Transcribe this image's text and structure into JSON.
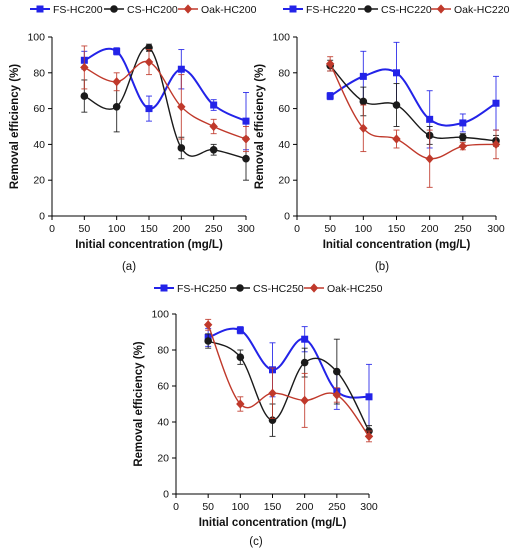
{
  "chart_data": [
    {
      "type": "line",
      "panel_label": "(a)",
      "xlabel": "Initial concentration (mg/L)",
      "ylabel": "Removal efficiency (%)",
      "xlim": [
        0,
        300
      ],
      "ylim": [
        0,
        100
      ],
      "xticks": [
        "0",
        "50",
        "100",
        "150",
        "200",
        "250",
        "300"
      ],
      "yticks": [
        "0",
        "20",
        "40",
        "60",
        "80",
        "100"
      ],
      "grid": false,
      "legend_position": "top",
      "x": [
        50,
        100,
        150,
        200,
        250,
        300
      ],
      "series": [
        {
          "name": "FS-HC200",
          "color": "#2323e8",
          "marker": "square",
          "values": [
            87,
            92,
            60,
            82,
            62,
            53
          ],
          "errors": [
            5,
            2,
            7,
            11,
            3,
            16
          ]
        },
        {
          "name": "CS-HC200",
          "color": "#1a1a1a",
          "marker": "circle",
          "values": [
            67,
            61,
            94,
            38,
            37,
            32
          ],
          "errors": [
            9,
            14,
            2,
            6,
            3,
            12
          ]
        },
        {
          "name": "Oak-HC200",
          "color": "#c0392b",
          "marker": "diamond",
          "values": [
            83,
            75,
            86,
            61,
            50,
            43
          ],
          "errors": [
            12,
            5,
            7,
            18,
            4,
            7
          ]
        }
      ]
    },
    {
      "type": "line",
      "panel_label": "(b)",
      "xlabel": "Initial concentration (mg/L)",
      "ylabel": "Removal efficiency (%)",
      "xlim": [
        0,
        300
      ],
      "ylim": [
        0,
        100
      ],
      "xticks": [
        "0",
        "50",
        "100",
        "150",
        "200",
        "250",
        "300"
      ],
      "yticks": [
        "0",
        "20",
        "40",
        "60",
        "80",
        "100"
      ],
      "grid": false,
      "legend_position": "top",
      "x": [
        50,
        100,
        150,
        200,
        250,
        300
      ],
      "series": [
        {
          "name": "FS-HC220",
          "color": "#2323e8",
          "marker": "square",
          "values": [
            67,
            78,
            80,
            54,
            52,
            63
          ],
          "errors": [
            2,
            14,
            17,
            16,
            5,
            15
          ]
        },
        {
          "name": "CS-HC220",
          "color": "#1a1a1a",
          "marker": "circle",
          "values": [
            84,
            64,
            62,
            45,
            44,
            42
          ],
          "errors": [
            3,
            8,
            12,
            5,
            2,
            3
          ]
        },
        {
          "name": "Oak-HC220",
          "color": "#c0392b",
          "marker": "diamond",
          "values": [
            85,
            49,
            43,
            32,
            39,
            40
          ],
          "errors": [
            4,
            13,
            5,
            16,
            2,
            8
          ]
        }
      ]
    },
    {
      "type": "line",
      "panel_label": "(c)",
      "xlabel": "Initial concentration (mg/L)",
      "ylabel": "Removal efficiency (%)",
      "xlim": [
        0,
        300
      ],
      "ylim": [
        0,
        100
      ],
      "xticks": [
        "0",
        "50",
        "100",
        "150",
        "200",
        "250",
        "300"
      ],
      "yticks": [
        "0",
        "20",
        "40",
        "60",
        "80",
        "100"
      ],
      "grid": false,
      "legend_position": "top",
      "x": [
        50,
        100,
        150,
        200,
        250,
        300
      ],
      "series": [
        {
          "name": "FS-HC250",
          "color": "#2323e8",
          "marker": "square",
          "values": [
            87,
            91,
            69,
            86,
            57,
            54
          ],
          "errors": [
            5,
            2,
            15,
            7,
            10,
            18
          ]
        },
        {
          "name": "CS-HC250",
          "color": "#1a1a1a",
          "marker": "circle",
          "values": [
            85,
            76,
            41,
            73,
            68,
            35
          ],
          "errors": [
            4,
            4,
            9,
            8,
            18,
            3
          ]
        },
        {
          "name": "Oak-HC250",
          "color": "#c0392b",
          "marker": "diamond",
          "values": [
            94,
            50,
            56,
            52,
            55,
            32
          ],
          "errors": [
            3,
            4,
            14,
            15,
            4,
            3
          ]
        }
      ]
    }
  ]
}
